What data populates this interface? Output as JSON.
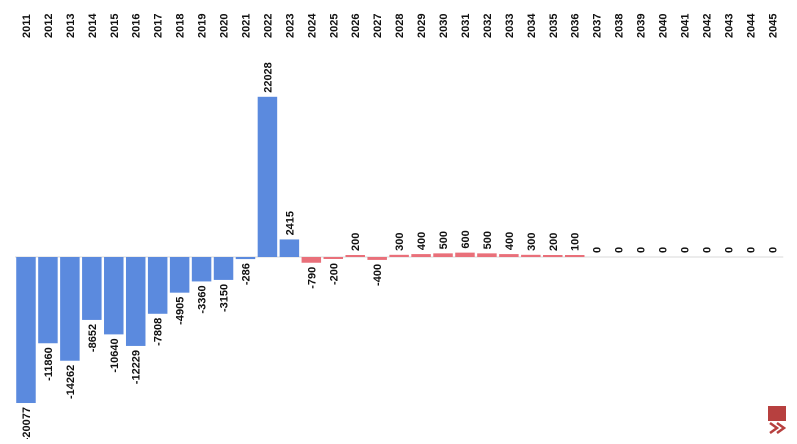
{
  "chart_data": {
    "type": "bar",
    "title": "",
    "xlabel": "",
    "ylabel": "",
    "ylim": [
      -21000,
      24000
    ],
    "grid": false,
    "legend": "none",
    "categories": [
      "2011",
      "2012",
      "2013",
      "2014",
      "2015",
      "2016",
      "2017",
      "2018",
      "2019",
      "2020",
      "2021",
      "2022",
      "2023",
      "2024",
      "2025",
      "2026",
      "2027",
      "2028",
      "2029",
      "2030",
      "2031",
      "2032",
      "2033",
      "2034",
      "2035",
      "2036",
      "2037",
      "2038",
      "2039",
      "2040",
      "2041",
      "2042",
      "2043",
      "2044",
      "2045"
    ],
    "values": [
      -20077,
      -11860,
      -14262,
      -8652,
      -10640,
      -12229,
      -7808,
      -4905,
      -3360,
      -3150,
      -286,
      22028,
      2415,
      -790,
      -200,
      200,
      -400,
      300,
      400,
      500,
      600,
      500,
      400,
      300,
      200,
      100,
      0,
      0,
      0,
      0,
      0,
      0,
      0,
      0,
      0
    ],
    "series_colors": {
      "historical": "#5b8ade",
      "projection": "#e9707a"
    },
    "projection_from": "2024"
  },
  "colors": {
    "zero_line": "#d8d8d8",
    "logo": "#b7403f"
  }
}
